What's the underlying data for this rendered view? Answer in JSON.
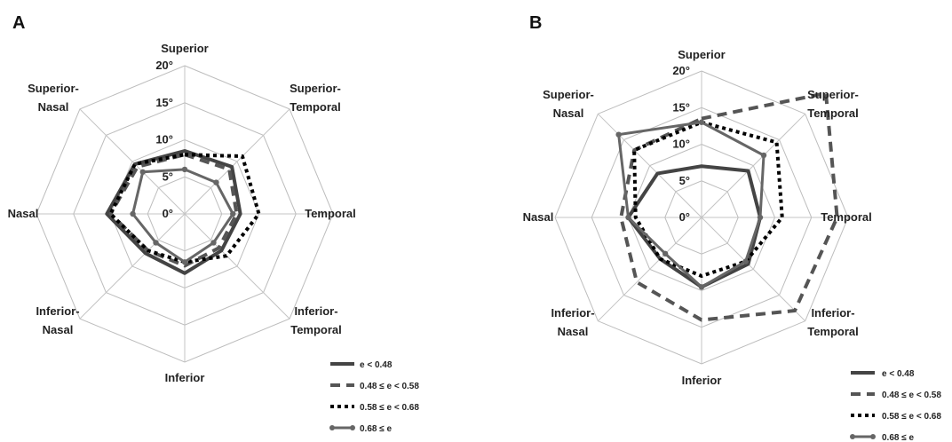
{
  "chart_data": [
    {
      "type": "radar",
      "panel_label": "A",
      "axes": [
        "Superior",
        "Superior-Temporal",
        "Temporal",
        "Inferior-Temporal",
        "Inferior",
        "Inferior-Nasal",
        "Nasal",
        "Superior-Nasal"
      ],
      "axis_label_lines": [
        [
          "Superior"
        ],
        [
          "Superior-",
          "Temporal"
        ],
        [
          "Temporal"
        ],
        [
          "Inferior-",
          "Temporal"
        ],
        [
          "Inferior"
        ],
        [
          "Inferior-",
          "Nasal"
        ],
        [
          "Nasal"
        ],
        [
          "Superior-",
          "Nasal"
        ]
      ],
      "rlim": [
        0,
        20
      ],
      "ticks": [
        0,
        5,
        10,
        15,
        20
      ],
      "tick_labels": [
        "0°",
        "5°",
        "10°",
        "15°",
        "20°"
      ],
      "series": [
        {
          "name": "e < 0.48",
          "style": "solid",
          "color": "#444444",
          "values": [
            8.5,
            9,
            7.5,
            7,
            8,
            7.5,
            10.5,
            9.5
          ]
        },
        {
          "name": "0.48 ≤ e < 0.58",
          "style": "dashed",
          "color": "#555555",
          "values": [
            8,
            8.5,
            7,
            6.5,
            7,
            7,
            10,
            9
          ]
        },
        {
          "name": "0.58 ≤ e < 0.68",
          "style": "dotted",
          "color": "#000000",
          "values": [
            8,
            11,
            10,
            8,
            6.5,
            7,
            10,
            9.5
          ]
        },
        {
          "name": "0.68 ≤ e",
          "style": "marker",
          "color": "#666666",
          "values": [
            6,
            6,
            6.5,
            5.5,
            6.5,
            5.5,
            7,
            8
          ]
        }
      ]
    },
    {
      "type": "radar",
      "panel_label": "B",
      "axes": [
        "Superior",
        "Superior-Temporal",
        "Temporal",
        "Inferior-Temporal",
        "Inferior",
        "Inferior-Nasal",
        "Nasal",
        "Superior-Nasal"
      ],
      "axis_label_lines": [
        [
          "Superior"
        ],
        [
          "Superior-",
          "Temporal"
        ],
        [
          "Temporal"
        ],
        [
          "Inferior-",
          "Temporal"
        ],
        [
          "Inferior"
        ],
        [
          "Inferior-",
          "Nasal"
        ],
        [
          "Nasal"
        ],
        [
          "Superior-",
          "Nasal"
        ]
      ],
      "rlim": [
        0,
        20
      ],
      "ticks": [
        0,
        5,
        10,
        15,
        20
      ],
      "tick_labels": [
        "0°",
        "5°",
        "10°",
        "15°",
        "20°"
      ],
      "series": [
        {
          "name": "e < 0.48",
          "style": "solid",
          "color": "#444444",
          "values": [
            7,
            9,
            8,
            9,
            9.5,
            8,
            10,
            8.5
          ]
        },
        {
          "name": "0.48 ≤ e < 0.58",
          "style": "dashed",
          "color": "#555555",
          "values": [
            13.5,
            24,
            18.5,
            18,
            14,
            12.5,
            11,
            13
          ]
        },
        {
          "name": "0.58 ≤ e < 0.68",
          "style": "dotted",
          "color": "#000000",
          "values": [
            13,
            14.5,
            11,
            8.5,
            8,
            8,
            9,
            13
          ]
        },
        {
          "name": "0.68 ≤ e",
          "style": "marker",
          "color": "#666666",
          "values": [
            13,
            12,
            8,
            8.5,
            9.5,
            7,
            10,
            16
          ]
        }
      ]
    }
  ]
}
